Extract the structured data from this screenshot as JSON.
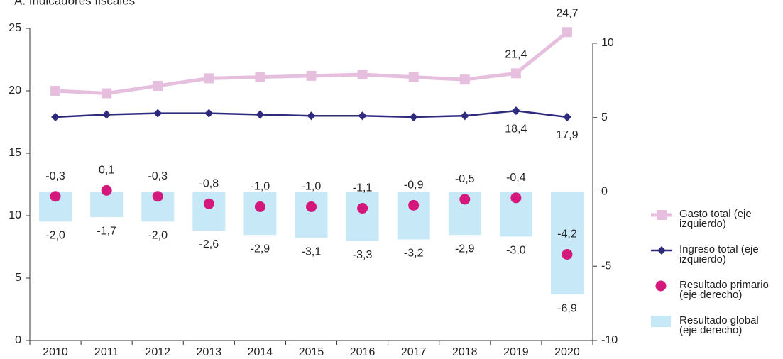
{
  "chart_data": {
    "type": "combo",
    "title": "A. Indicadores fiscales",
    "categories": [
      "2010",
      "2011",
      "2012",
      "2013",
      "2014",
      "2015",
      "2016",
      "2017",
      "2018",
      "2019",
      "2020"
    ],
    "ylim": [
      0,
      25
    ],
    "yticks": [
      0,
      5,
      10,
      15,
      20,
      25
    ],
    "y2lim": [
      -10,
      11
    ],
    "y2ticks": [
      -10,
      -5,
      0,
      5,
      10
    ],
    "series": [
      {
        "name": "Resultado global (eje derecho)",
        "type": "bar",
        "axis": "y2",
        "color": "#c6e8f7",
        "values": [
          -2.0,
          -1.7,
          -2.0,
          -2.6,
          -2.9,
          -3.1,
          -3.3,
          -3.2,
          -2.9,
          -3.0,
          -6.9
        ],
        "value_labels": [
          "-2,0",
          "-1,7",
          "-2,0",
          "-2,6",
          "-2,9",
          "-3,1",
          "-3,3",
          "-3,2",
          "-2,9",
          "-3,0",
          "-6,9"
        ]
      },
      {
        "name": "Gasto total (eje izquierdo)",
        "type": "line",
        "marker": "square",
        "color": "#e6bfdf",
        "values": [
          20.0,
          19.8,
          20.4,
          21.0,
          21.1,
          21.2,
          21.3,
          21.1,
          20.9,
          21.4,
          24.7
        ],
        "value_labels": [
          null,
          null,
          null,
          null,
          null,
          null,
          null,
          null,
          null,
          "21,4",
          "24,7"
        ]
      },
      {
        "name": "Ingreso total (eje izquierdo)",
        "type": "line",
        "marker": "diamond",
        "color": "#2e2a7e",
        "values": [
          17.9,
          18.1,
          18.2,
          18.2,
          18.1,
          18.0,
          18.0,
          17.9,
          18.0,
          18.4,
          17.9
        ],
        "value_labels": [
          null,
          null,
          null,
          null,
          null,
          null,
          null,
          null,
          null,
          "18,4",
          "17,9"
        ]
      },
      {
        "name": "Resultado primario (eje derecho)",
        "type": "scatter",
        "axis": "y2",
        "color": "#d4177a",
        "values": [
          -0.3,
          0.1,
          -0.3,
          -0.8,
          -1.0,
          -1.0,
          -1.1,
          -0.9,
          -0.5,
          -0.4,
          -4.2
        ],
        "value_labels": [
          "-0,3",
          "0,1",
          "-0,3",
          "-0,8",
          "-1,0",
          "-1,0",
          "-1,1",
          "-0,9",
          "-0,5",
          "-0,4",
          "-4,2"
        ]
      }
    ]
  }
}
